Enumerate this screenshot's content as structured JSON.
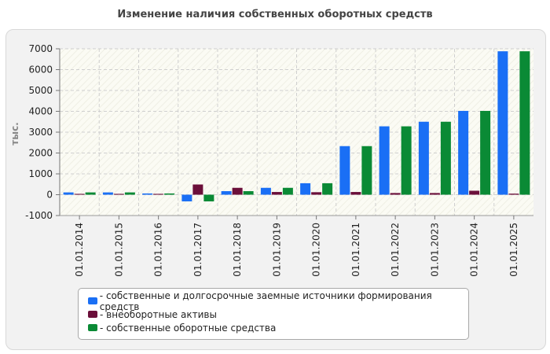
{
  "chart_data": {
    "type": "bar",
    "title": "Изменение наличия собственных оборотных средств",
    "ylabel": "тыс.",
    "xlabel": "",
    "ylim": [
      -1000,
      7000
    ],
    "yticks": [
      -1000,
      0,
      1000,
      2000,
      3000,
      4000,
      5000,
      6000,
      7000
    ],
    "grid": true,
    "legend_position": "bottom",
    "categories": [
      "01.01.2014",
      "01.01.2015",
      "01.01.2016",
      "01.01.2017",
      "01.01.2018",
      "01.01.2019",
      "01.01.2020",
      "01.01.2021",
      "01.01.2022",
      "01.01.2023",
      "01.01.2024",
      "01.01.2025"
    ],
    "series": [
      {
        "name": "собственные и долгосрочные заемные источники формирования средств",
        "color": "#1a6ff5",
        "values": [
          110,
          110,
          60,
          -320,
          170,
          330,
          550,
          2330,
          3280,
          3500,
          4020,
          6880
        ]
      },
      {
        "name": "внеоборотные активы",
        "color": "#6b0f3a",
        "values": [
          40,
          40,
          40,
          490,
          330,
          130,
          120,
          130,
          80,
          80,
          190,
          50
        ]
      },
      {
        "name": "собственные оборотные средства",
        "color": "#0a8a35",
        "values": [
          110,
          110,
          60,
          -320,
          170,
          330,
          550,
          2330,
          3280,
          3500,
          4020,
          6880
        ]
      }
    ]
  }
}
